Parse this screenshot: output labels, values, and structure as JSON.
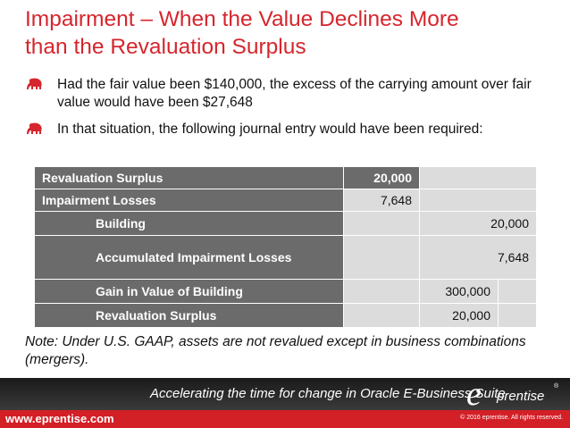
{
  "slide": {
    "title_line1": "Impairment – When the Value Declines More",
    "title_line2": "than the Revaluation Surplus",
    "bullets": [
      "Had the fair value been $140,000, the excess of the carrying amount over fair value would have been $27,648",
      "In that situation, the following journal entry would have been required:"
    ],
    "note": "Note: Under U.S. GAAP, assets are not revalued except in business combinations (mergers)."
  },
  "journal": {
    "rows": [
      {
        "account": "Revaluation Surplus",
        "debit": "20,000",
        "credit": ""
      },
      {
        "account": "Impairment Losses",
        "debit": "7,648",
        "credit": ""
      },
      {
        "account": "Building",
        "debit": "",
        "credit": "20,000"
      },
      {
        "account": "Accumulated Impairment Losses",
        "debit": "",
        "credit": "7,648"
      },
      {
        "account": "Gain in Value of Building",
        "debit": "",
        "credit": "300,000"
      },
      {
        "account": "Revaluation Surplus",
        "debit": "",
        "credit": "20,000"
      }
    ]
  },
  "footer": {
    "tagline": "Accelerating the time for change in Oracle E-Business Suite",
    "website": "www.eprentise.com",
    "copyright": "© 2016 eprentise. All rights reserved.",
    "logo_letter": "e",
    "logo_text": "prentise",
    "logo_mark": "®"
  },
  "colors": {
    "title": "#d6262d",
    "header_row": "#6b6b6b",
    "body_row": "#dcdcdc",
    "footer_red": "#d31f26"
  },
  "icons": [
    "elephant-icon"
  ]
}
